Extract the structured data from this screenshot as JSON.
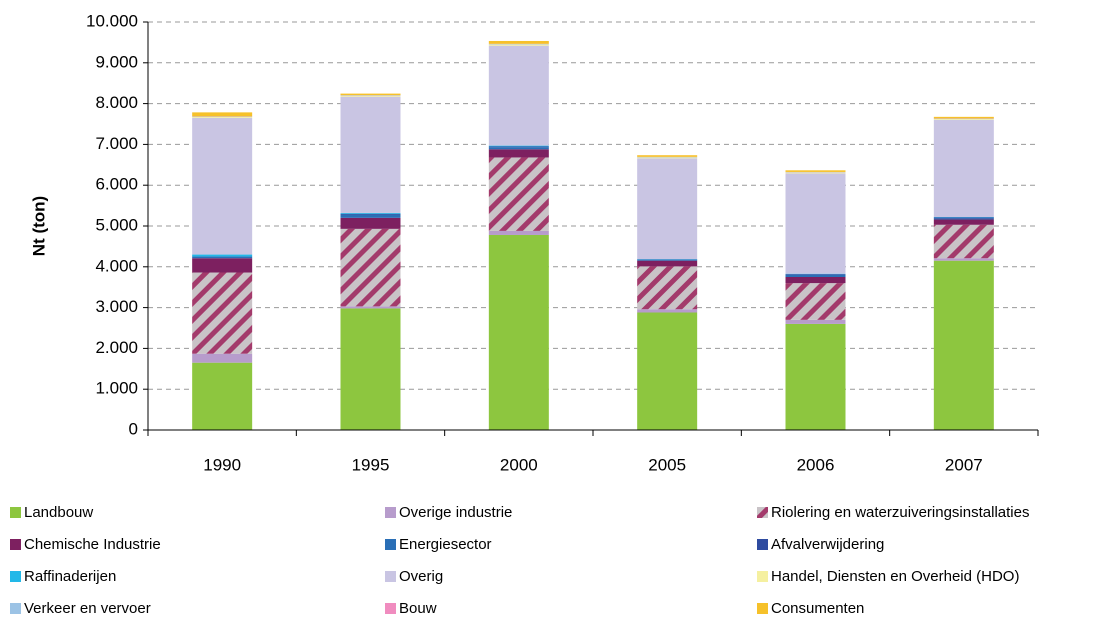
{
  "chart_data": {
    "type": "stacked_bar",
    "y_label": "Nt (ton)",
    "categories": [
      "1990",
      "1995",
      "2000",
      "2005",
      "2006",
      "2007"
    ],
    "ylim": [
      0,
      10000
    ],
    "yticks": [
      0,
      {
        "value": 1000,
        "label": "1.000"
      },
      {
        "value": 2000,
        "label": "2.000"
      },
      {
        "value": 3000,
        "label": "3.000"
      },
      {
        "value": 4000,
        "label": "4.000"
      },
      {
        "value": 5000,
        "label": "5.000"
      },
      {
        "value": 6000,
        "label": "6.000"
      },
      {
        "value": 7000,
        "label": "7.000"
      },
      {
        "value": 8000,
        "label": "8.000"
      },
      {
        "value": 9000,
        "label": "9.000"
      },
      {
        "value": 10000,
        "label": "10.000"
      }
    ],
    "grid": true,
    "series": [
      {
        "name": "Landbouw",
        "color": "#8dc63f",
        "values": [
          1650,
          2980,
          4780,
          2880,
          2600,
          4150
        ]
      },
      {
        "name": "Overige industrie",
        "color": "#b79ccc",
        "values": [
          220,
          50,
          100,
          80,
          100,
          60
        ]
      },
      {
        "name": "Riolering en waterzuiveringsinstallaties",
        "color": "#a33a6b",
        "hatch": true,
        "values": [
          1990,
          1900,
          1800,
          1050,
          900,
          820
        ]
      },
      {
        "name": "Chemische Industrie",
        "color": "#7d2060",
        "values": [
          350,
          270,
          200,
          140,
          150,
          130
        ]
      },
      {
        "name": "Energiesector",
        "color": "#2a6fb6",
        "values": [
          30,
          80,
          50,
          20,
          50,
          20
        ]
      },
      {
        "name": "Afvalverwijdering",
        "color": "#2e4ba0",
        "values": [
          10,
          20,
          20,
          10,
          20,
          30
        ]
      },
      {
        "name": "Raffinaderijen",
        "color": "#22b8e8",
        "values": [
          50,
          20,
          20,
          10,
          10,
          10
        ]
      },
      {
        "name": "Overig",
        "color": "#c9c5e3",
        "values": [
          3350,
          2850,
          2450,
          2470,
          2460,
          2380
        ]
      },
      {
        "name": "Handel, Diensten en Overheid (HDO)",
        "color": "#f5f0a0",
        "values": [
          20,
          20,
          30,
          20,
          20,
          20
        ]
      },
      {
        "name": "Verkeer en vervoer",
        "color": "#9cc3e5",
        "values": [
          10,
          10,
          10,
          10,
          10,
          10
        ]
      },
      {
        "name": "Bouw",
        "color": "#f08cbf",
        "values": [
          5,
          5,
          5,
          5,
          5,
          5
        ]
      },
      {
        "name": "Consumenten",
        "color": "#f6c12a",
        "values": [
          100,
          40,
          70,
          40,
          40,
          40
        ]
      }
    ]
  }
}
